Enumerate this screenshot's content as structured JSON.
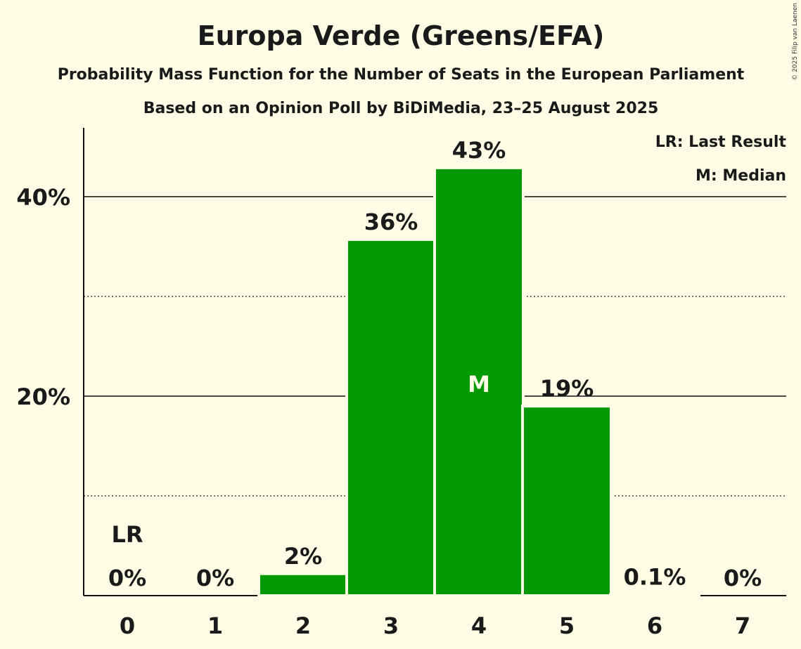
{
  "chart_data": {
    "type": "bar",
    "title": "Europa Verde (Greens/EFA)",
    "subtitle": "Probability Mass Function for the Number of Seats in the European Parliament",
    "subtitle2": "Based on an Opinion Poll by BiDiMedia, 23–25 August 2025",
    "copyright": "© 2025 Filip van Laenen",
    "categories": [
      "0",
      "1",
      "2",
      "3",
      "4",
      "5",
      "6",
      "7"
    ],
    "values": [
      0,
      0,
      2.2,
      35.7,
      42.9,
      19.0,
      0.1,
      0
    ],
    "labels": [
      "0%",
      "0%",
      "2%",
      "36%",
      "43%",
      "19%",
      "0.1%",
      "0%"
    ],
    "ylim": [
      0,
      47
    ],
    "yticks": [
      {
        "v": 20,
        "label": "20%"
      },
      {
        "v": 40,
        "label": "40%"
      }
    ],
    "minor_grid": [
      10,
      30
    ],
    "last_result_index": 0,
    "last_result_label": "LR",
    "median_index": 4,
    "median_label": "M",
    "legend": [
      "LR: Last Result",
      "M: Median"
    ],
    "legend_position": "top-right",
    "bar_color": "#009900",
    "background": "#fffde5"
  }
}
